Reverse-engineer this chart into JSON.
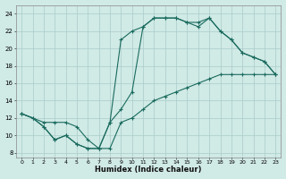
{
  "bg_color": "#d0eae6",
  "grid_color": "#aaccca",
  "line_color": "#1a6b5e",
  "xlabel": "Humidex (Indice chaleur)",
  "xlim": [
    -0.5,
    23.5
  ],
  "ylim": [
    7.5,
    25.0
  ],
  "xticks": [
    0,
    1,
    2,
    3,
    4,
    5,
    6,
    7,
    8,
    9,
    10,
    11,
    12,
    13,
    14,
    15,
    16,
    17,
    18,
    19,
    20,
    21,
    22,
    23
  ],
  "yticks": [
    8,
    10,
    12,
    14,
    16,
    18,
    20,
    22,
    24
  ],
  "curve1_x": [
    0,
    1,
    2,
    3,
    4,
    5,
    6,
    7,
    8,
    9,
    10,
    11,
    12,
    13,
    14,
    15,
    16,
    17,
    18,
    19,
    20,
    21,
    22,
    23
  ],
  "curve1_y": [
    12.5,
    12.0,
    11.0,
    9.5,
    10.0,
    9.0,
    8.5,
    8.5,
    11.5,
    21.0,
    22.0,
    22.5,
    23.5,
    23.5,
    23.5,
    23.0,
    22.5,
    23.5,
    22.0,
    21.0,
    19.5,
    19.0,
    18.5,
    17.0
  ],
  "curve2_x": [
    0,
    1,
    2,
    3,
    4,
    5,
    6,
    7,
    8,
    9,
    10,
    11,
    12,
    13,
    14,
    15,
    16,
    17,
    18,
    19,
    20,
    21,
    22,
    23
  ],
  "curve2_y": [
    12.5,
    12.0,
    11.0,
    9.5,
    10.0,
    9.0,
    8.5,
    8.5,
    11.5,
    13.0,
    15.0,
    22.5,
    23.5,
    23.5,
    23.5,
    23.0,
    23.0,
    23.5,
    22.0,
    21.0,
    19.5,
    19.0,
    18.5,
    17.0
  ],
  "curve3_x": [
    0,
    2,
    3,
    4,
    5,
    6,
    7,
    8,
    9,
    10,
    11,
    12,
    13,
    14,
    15,
    16,
    17,
    18,
    19,
    20,
    21,
    22,
    23
  ],
  "curve3_y": [
    12.5,
    11.5,
    11.5,
    11.5,
    11.0,
    9.5,
    8.5,
    8.5,
    11.5,
    12.0,
    13.0,
    14.0,
    14.5,
    15.0,
    15.5,
    16.0,
    16.5,
    17.0,
    17.0,
    17.0,
    17.0,
    17.0,
    17.0
  ]
}
